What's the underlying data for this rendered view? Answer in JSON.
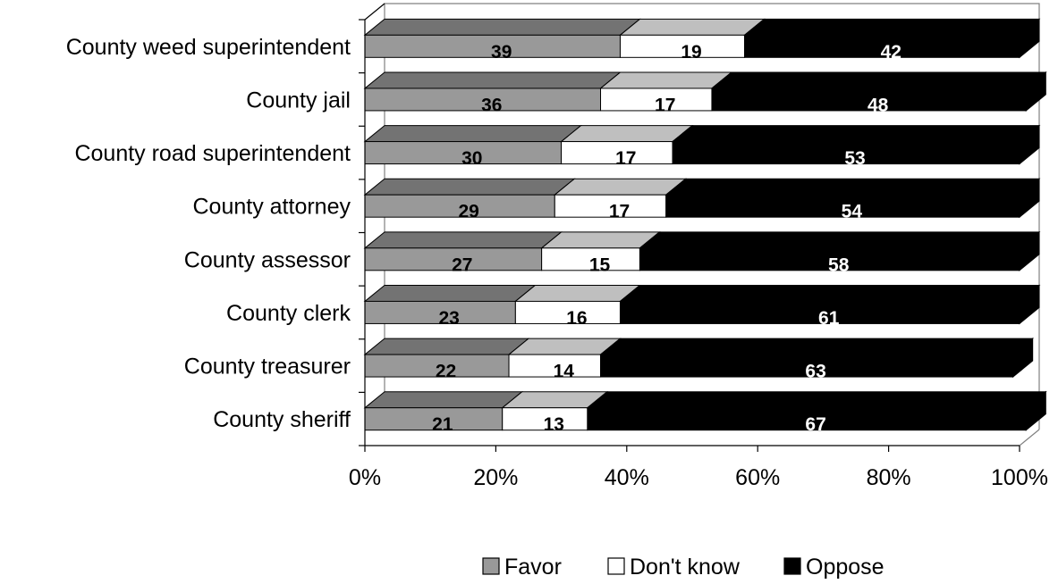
{
  "chart_data": {
    "type": "bar",
    "orientation": "horizontal",
    "stacked": "percent",
    "title": "",
    "categories": [
      "County weed superintendent",
      "County jail",
      "County road superintendent",
      "County attorney",
      "County assessor",
      "County clerk",
      "County treasurer",
      "County sheriff"
    ],
    "series": [
      {
        "name": "Favor",
        "color": "#999999",
        "values": [
          39,
          36,
          30,
          29,
          27,
          23,
          22,
          21
        ]
      },
      {
        "name": "Don't know",
        "color": "#ffffff",
        "values": [
          19,
          17,
          17,
          17,
          15,
          16,
          14,
          13
        ]
      },
      {
        "name": "Oppose",
        "color": "#000000",
        "values": [
          42,
          48,
          53,
          54,
          58,
          61,
          63,
          67
        ]
      }
    ],
    "xticks": [
      "0%",
      "20%",
      "40%",
      "60%",
      "80%",
      "100%"
    ],
    "xlim": [
      0,
      100
    ],
    "legend_position": "bottom",
    "grid": false,
    "style": "3d"
  }
}
